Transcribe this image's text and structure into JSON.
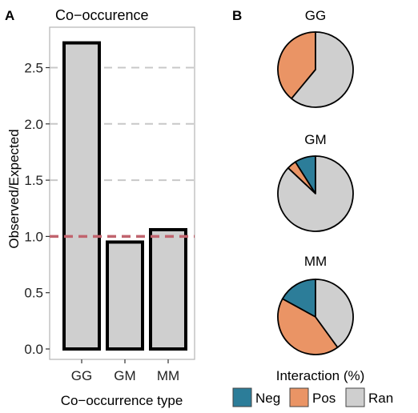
{
  "panels": {
    "a_letter": "A",
    "b_letter": "B"
  },
  "colors": {
    "bar_fill": "#cfcfcf",
    "bar_stroke": "#000000",
    "grid": "#c8c8c8",
    "reference_line": "#c1646e",
    "frame": "#b5b5b5",
    "neg": "#2c7d99",
    "pos": "#ea9465",
    "ran": "#cfcfcf"
  },
  "chart_data": [
    {
      "type": "bar",
      "title": "Co−occurence",
      "xlabel": "Co−occurrence type",
      "ylabel": "Observed/Expected",
      "categories": [
        "GG",
        "GM",
        "MM"
      ],
      "values": [
        2.72,
        0.95,
        1.06
      ],
      "ylim": [
        0,
        2.75
      ],
      "yticks": [
        "0.0",
        "0.5",
        "1.0",
        "1.5",
        "2.0",
        "2.5"
      ],
      "reference_line": 1.0,
      "grid": "dashed horizontal at 1.5, 2.0, 2.5"
    },
    {
      "type": "pie",
      "legend_title": "Interaction (%)",
      "legend_position": "bottom",
      "slice_labels": [
        "Neg",
        "Pos",
        "Ran"
      ],
      "pies": [
        {
          "title": "GG",
          "values": [
            0,
            39,
            61
          ]
        },
        {
          "title": "GM",
          "values": [
            9,
            4,
            87
          ]
        },
        {
          "title": "MM",
          "values": [
            17,
            43,
            40
          ]
        }
      ]
    }
  ]
}
